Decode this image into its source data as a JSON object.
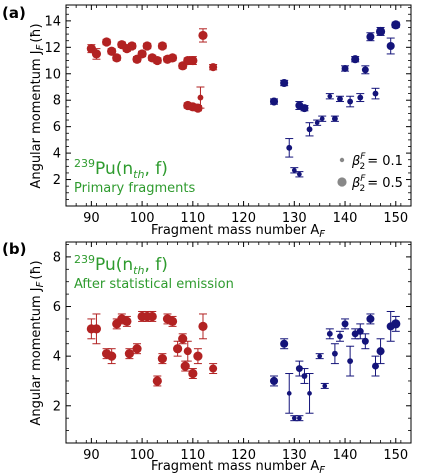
{
  "chart_data": [
    {
      "type": "scatter",
      "panel_label": "(a)",
      "xlabel": "Fragment mass number A",
      "xlabel_sub": "F",
      "ylabel": "Angular momentum J",
      "ylabel_sub": "F",
      "ylabel_unit": "(ħ)",
      "xlim": [
        85,
        153
      ],
      "ylim": [
        0,
        15.2
      ],
      "xticks": [
        90,
        100,
        110,
        120,
        130,
        140,
        150
      ],
      "yticks": [
        2,
        4,
        6,
        8,
        10,
        12,
        14
      ],
      "annotation": {
        "prefix": "239",
        "main": "Pu(n",
        "sub": "th",
        "tail": ", f)",
        "note": "Primary fragments",
        "color": "#2e9b2e"
      },
      "size_legend": {
        "symbol": "β",
        "sup": "F",
        "sub": "2",
        "entries": [
          {
            "value": "= 0.1",
            "size": "small"
          },
          {
            "value": "= 0.5",
            "size": "large"
          }
        ]
      },
      "series": [
        {
          "color": "#b22222",
          "points": [
            {
              "x": 90,
              "y": 11.9,
              "err": 0.3,
              "beta": 0.5
            },
            {
              "x": 91,
              "y": 11.5,
              "err": 0.4,
              "beta": 0.5
            },
            {
              "x": 93,
              "y": 12.4,
              "err": 0.2,
              "beta": 0.5
            },
            {
              "x": 94,
              "y": 11.7,
              "err": 0.2,
              "beta": 0.5
            },
            {
              "x": 95,
              "y": 11.2,
              "err": 0.2,
              "beta": 0.5
            },
            {
              "x": 96,
              "y": 12.2,
              "err": 0.2,
              "beta": 0.5
            },
            {
              "x": 97,
              "y": 11.9,
              "err": 0.2,
              "beta": 0.5
            },
            {
              "x": 98,
              "y": 12.1,
              "err": 0.2,
              "beta": 0.5
            },
            {
              "x": 99,
              "y": 11.1,
              "err": 0.2,
              "beta": 0.5
            },
            {
              "x": 100,
              "y": 11.5,
              "err": 0.2,
              "beta": 0.5
            },
            {
              "x": 101,
              "y": 12.1,
              "err": 0.2,
              "beta": 0.5
            },
            {
              "x": 102,
              "y": 11.2,
              "err": 0.2,
              "beta": 0.5
            },
            {
              "x": 103,
              "y": 11.0,
              "err": 0.2,
              "beta": 0.5
            },
            {
              "x": 104,
              "y": 12.1,
              "err": 0.2,
              "beta": 0.5
            },
            {
              "x": 105,
              "y": 11.1,
              "err": 0.2,
              "beta": 0.5
            },
            {
              "x": 106,
              "y": 11.2,
              "err": 0.2,
              "beta": 0.5
            },
            {
              "x": 108,
              "y": 10.6,
              "err": 0.2,
              "beta": 0.5
            },
            {
              "x": 109,
              "y": 11.0,
              "err": 0.2,
              "beta": 0.5
            },
            {
              "x": 110,
              "y": 11.0,
              "err": 0.3,
              "beta": 0.5
            },
            {
              "x": 109,
              "y": 7.6,
              "err": 0.2,
              "beta": 0.5
            },
            {
              "x": 110,
              "y": 7.5,
              "err": 0.2,
              "beta": 0.5
            },
            {
              "x": 111,
              "y": 7.4,
              "err": 0.2,
              "beta": 0.5
            },
            {
              "x": 111.5,
              "y": 8.2,
              "err": 0.8,
              "beta": 0.2
            },
            {
              "x": 112,
              "y": 12.9,
              "err": 0.5,
              "beta": 0.5
            },
            {
              "x": 114,
              "y": 10.5,
              "err": 0.2,
              "beta": 0.4
            }
          ]
        },
        {
          "color": "#14147a",
          "points": [
            {
              "x": 126,
              "y": 7.9,
              "err": 0.2,
              "beta": 0.4
            },
            {
              "x": 128,
              "y": 9.3,
              "err": 0.2,
              "beta": 0.4
            },
            {
              "x": 129,
              "y": 4.4,
              "err": 0.7,
              "beta": 0.2
            },
            {
              "x": 130,
              "y": 2.7,
              "err": 0.2,
              "beta": 0.1
            },
            {
              "x": 131,
              "y": 2.4,
              "err": 0.2,
              "beta": 0.1
            },
            {
              "x": 131,
              "y": 7.6,
              "err": 0.3,
              "beta": 0.4
            },
            {
              "x": 132,
              "y": 7.4,
              "err": 0.2,
              "beta": 0.4
            },
            {
              "x": 133,
              "y": 5.8,
              "err": 0.5,
              "beta": 0.2
            },
            {
              "x": 134.5,
              "y": 6.3,
              "err": 0.2,
              "beta": 0.1
            },
            {
              "x": 135.5,
              "y": 6.6,
              "err": 0.2,
              "beta": 0.1
            },
            {
              "x": 137,
              "y": 8.3,
              "err": 0.2,
              "beta": 0.1
            },
            {
              "x": 138,
              "y": 6.6,
              "err": 0.2,
              "beta": 0.2
            },
            {
              "x": 139,
              "y": 8.1,
              "err": 0.2,
              "beta": 0.2
            },
            {
              "x": 140,
              "y": 10.4,
              "err": 0.2,
              "beta": 0.3
            },
            {
              "x": 141,
              "y": 7.9,
              "err": 0.4,
              "beta": 0.2
            },
            {
              "x": 142,
              "y": 11.1,
              "err": 0.2,
              "beta": 0.4
            },
            {
              "x": 143,
              "y": 8.2,
              "err": 0.3,
              "beta": 0.2
            },
            {
              "x": 144,
              "y": 10.3,
              "err": 0.3,
              "beta": 0.3
            },
            {
              "x": 145,
              "y": 12.8,
              "err": 0.3,
              "beta": 0.4
            },
            {
              "x": 146,
              "y": 8.5,
              "err": 0.4,
              "beta": 0.2
            },
            {
              "x": 147,
              "y": 13.2,
              "err": 0.3,
              "beta": 0.5
            },
            {
              "x": 149,
              "y": 12.1,
              "err": 0.6,
              "beta": 0.4
            },
            {
              "x": 150,
              "y": 13.7,
              "err": 0.2,
              "beta": 0.5
            }
          ]
        }
      ]
    },
    {
      "type": "scatter",
      "panel_label": "(b)",
      "xlabel": "Fragment mass number A",
      "xlabel_sub": "F",
      "ylabel": "Angular momentum J",
      "ylabel_sub": "F",
      "ylabel_unit": "(ħ)",
      "xlim": [
        85,
        153
      ],
      "ylim": [
        0.5,
        8.6
      ],
      "xticks": [
        90,
        100,
        110,
        120,
        130,
        140,
        150
      ],
      "yticks": [
        2,
        4,
        6,
        8
      ],
      "annotation": {
        "prefix": "239",
        "main": "Pu(n",
        "sub": "th",
        "tail": ", f)",
        "note": "After statistical emission",
        "color": "#2e9b2e"
      },
      "series": [
        {
          "color": "#b22222",
          "points": [
            {
              "x": 90,
              "y": 5.1,
              "err": 0.4,
              "beta": 0.5
            },
            {
              "x": 91,
              "y": 5.1,
              "err": 0.6,
              "beta": 0.5
            },
            {
              "x": 93,
              "y": 4.1,
              "err": 0.2,
              "beta": 0.5
            },
            {
              "x": 94,
              "y": 4.0,
              "err": 0.3,
              "beta": 0.5
            },
            {
              "x": 95,
              "y": 5.3,
              "err": 0.2,
              "beta": 0.5
            },
            {
              "x": 96,
              "y": 5.5,
              "err": 0.2,
              "beta": 0.5
            },
            {
              "x": 97,
              "y": 5.4,
              "err": 0.2,
              "beta": 0.5
            },
            {
              "x": 97.5,
              "y": 4.1,
              "err": 0.2,
              "beta": 0.5
            },
            {
              "x": 99,
              "y": 4.3,
              "err": 0.2,
              "beta": 0.5
            },
            {
              "x": 100,
              "y": 5.6,
              "err": 0.2,
              "beta": 0.5
            },
            {
              "x": 101,
              "y": 5.6,
              "err": 0.2,
              "beta": 0.5
            },
            {
              "x": 102,
              "y": 5.6,
              "err": 0.2,
              "beta": 0.5
            },
            {
              "x": 103,
              "y": 3.0,
              "err": 0.2,
              "beta": 0.5
            },
            {
              "x": 104,
              "y": 3.9,
              "err": 0.2,
              "beta": 0.5
            },
            {
              "x": 105,
              "y": 5.5,
              "err": 0.2,
              "beta": 0.5
            },
            {
              "x": 106,
              "y": 5.4,
              "err": 0.2,
              "beta": 0.5
            },
            {
              "x": 107,
              "y": 4.3,
              "err": 0.3,
              "beta": 0.5
            },
            {
              "x": 108,
              "y": 4.7,
              "err": 0.2,
              "beta": 0.5
            },
            {
              "x": 108.5,
              "y": 3.6,
              "err": 0.2,
              "beta": 0.5
            },
            {
              "x": 109,
              "y": 4.2,
              "err": 0.4,
              "beta": 0.4
            },
            {
              "x": 110,
              "y": 3.3,
              "err": 0.2,
              "beta": 0.5
            },
            {
              "x": 111,
              "y": 4.0,
              "err": 0.3,
              "beta": 0.5
            },
            {
              "x": 112,
              "y": 5.2,
              "err": 0.5,
              "beta": 0.5
            },
            {
              "x": 114,
              "y": 3.5,
              "err": 0.2,
              "beta": 0.4
            }
          ]
        },
        {
          "color": "#14147a",
          "points": [
            {
              "x": 126,
              "y": 3.0,
              "err": 0.2,
              "beta": 0.4
            },
            {
              "x": 128,
              "y": 4.5,
              "err": 0.2,
              "beta": 0.4
            },
            {
              "x": 129,
              "y": 2.5,
              "err": 0.8,
              "beta": 0.1
            },
            {
              "x": 130,
              "y": 1.5,
              "err": 0.1,
              "beta": 0.1
            },
            {
              "x": 131,
              "y": 1.5,
              "err": 0.1,
              "beta": 0.1
            },
            {
              "x": 131,
              "y": 3.5,
              "err": 0.3,
              "beta": 0.3
            },
            {
              "x": 132,
              "y": 3.2,
              "err": 0.3,
              "beta": 0.2
            },
            {
              "x": 133,
              "y": 2.5,
              "err": 0.8,
              "beta": 0.1
            },
            {
              "x": 135,
              "y": 4.0,
              "err": 0.1,
              "beta": 0.1
            },
            {
              "x": 136,
              "y": 2.8,
              "err": 0.1,
              "beta": 0.1
            },
            {
              "x": 137,
              "y": 4.9,
              "err": 0.2,
              "beta": 0.2
            },
            {
              "x": 138,
              "y": 4.1,
              "err": 0.4,
              "beta": 0.2
            },
            {
              "x": 139,
              "y": 4.8,
              "err": 0.2,
              "beta": 0.2
            },
            {
              "x": 140,
              "y": 5.3,
              "err": 0.2,
              "beta": 0.3
            },
            {
              "x": 141,
              "y": 3.8,
              "err": 0.6,
              "beta": 0.2
            },
            {
              "x": 142,
              "y": 4.9,
              "err": 0.2,
              "beta": 0.3
            },
            {
              "x": 143,
              "y": 5.0,
              "err": 0.3,
              "beta": 0.3
            },
            {
              "x": 144,
              "y": 4.6,
              "err": 0.3,
              "beta": 0.3
            },
            {
              "x": 145,
              "y": 5.5,
              "err": 0.2,
              "beta": 0.4
            },
            {
              "x": 146,
              "y": 3.6,
              "err": 0.4,
              "beta": 0.3
            },
            {
              "x": 147,
              "y": 4.2,
              "err": 0.5,
              "beta": 0.4
            },
            {
              "x": 149,
              "y": 5.2,
              "err": 0.6,
              "beta": 0.4
            },
            {
              "x": 150,
              "y": 5.3,
              "err": 0.3,
              "beta": 0.5
            }
          ]
        }
      ]
    }
  ]
}
